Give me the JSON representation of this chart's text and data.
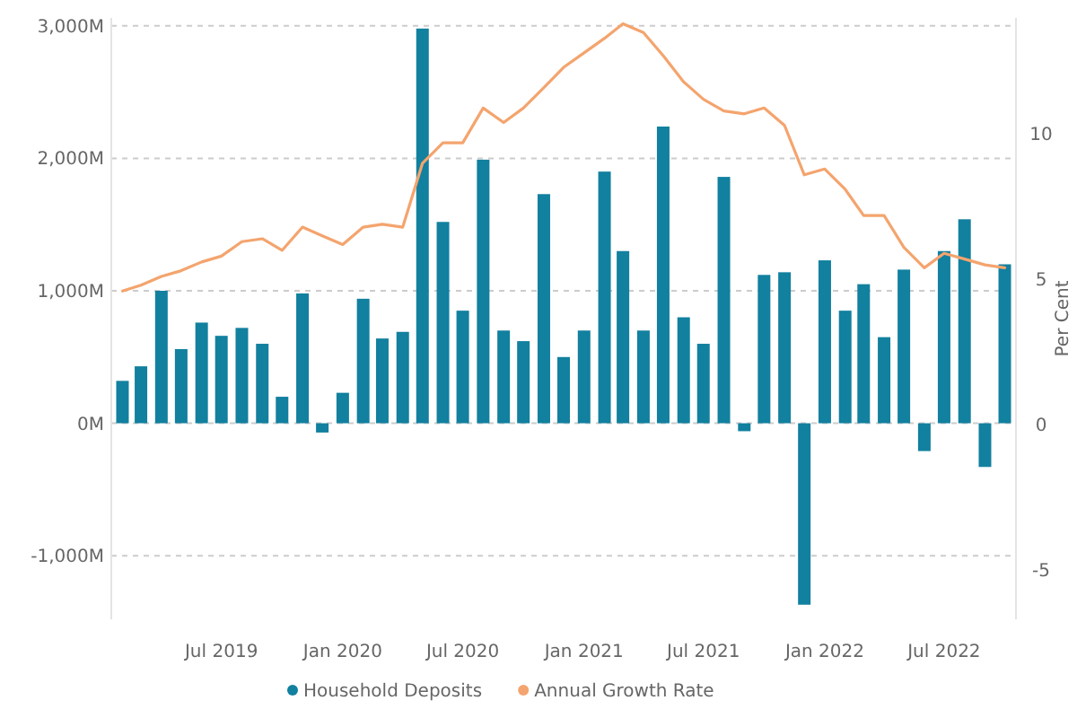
{
  "chart_data": {
    "type": "bar",
    "x": [
      "2019-02",
      "2019-03",
      "2019-04",
      "2019-05",
      "2019-06",
      "2019-07",
      "2019-08",
      "2019-09",
      "2019-10",
      "2019-11",
      "2019-12",
      "2020-01",
      "2020-02",
      "2020-03",
      "2020-04",
      "2020-05",
      "2020-06",
      "2020-07",
      "2020-08",
      "2020-09",
      "2020-10",
      "2020-11",
      "2020-12",
      "2021-01",
      "2021-02",
      "2021-03",
      "2021-04",
      "2021-05",
      "2021-06",
      "2021-07",
      "2021-08",
      "2021-09",
      "2021-10",
      "2021-11",
      "2021-12",
      "2022-01",
      "2022-02",
      "2022-03",
      "2022-04",
      "2022-05",
      "2022-06",
      "2022-07",
      "2022-08",
      "2022-09",
      "2022-10"
    ],
    "series": [
      {
        "name": "Household Deposits",
        "color": "#12809f",
        "values": [
          320,
          430,
          1000,
          560,
          760,
          660,
          720,
          600,
          200,
          980,
          -70,
          230,
          940,
          640,
          690,
          2980,
          1520,
          850,
          1990,
          700,
          620,
          1730,
          500,
          700,
          1900,
          1300,
          700,
          2240,
          800,
          600,
          1860,
          -60,
          1120,
          1140,
          -1370,
          1230,
          850,
          1050,
          650,
          1160,
          -210,
          1300,
          1540,
          -330,
          1200
        ]
      },
      {
        "name": "Annual Growth Rate",
        "type": "line",
        "axis": "y2",
        "color": "#f4a46e",
        "values": [
          4.6,
          4.8,
          5.1,
          5.3,
          5.6,
          5.8,
          6.3,
          6.4,
          6.0,
          6.8,
          6.5,
          6.2,
          6.8,
          6.9,
          6.8,
          9.0,
          9.7,
          9.7,
          10.9,
          10.4,
          10.9,
          11.6,
          12.3,
          12.8,
          13.3,
          13.8,
          13.5,
          12.7,
          11.8,
          11.2,
          10.8,
          10.7,
          10.9,
          10.3,
          8.6,
          8.8,
          8.1,
          7.2,
          7.2,
          6.1,
          5.4,
          5.9,
          5.7,
          5.5,
          5.4
        ]
      }
    ],
    "xlim": [
      "2019-01-15",
      "2022-10-18"
    ],
    "xticks": [
      {
        "value": "2019-07",
        "label": "Jul 2019"
      },
      {
        "value": "2020-01",
        "label": "Jan 2020"
      },
      {
        "value": "2020-07",
        "label": "Jul 2020"
      },
      {
        "value": "2021-01",
        "label": "Jan 2021"
      },
      {
        "value": "2021-07",
        "label": "Jul 2021"
      },
      {
        "value": "2022-01",
        "label": "Jan 2022"
      },
      {
        "value": "2022-07",
        "label": "Jul 2022"
      }
    ],
    "ylim": [
      -1480,
      3060
    ],
    "yticks": [
      {
        "value": -1000,
        "label": "-1,000M"
      },
      {
        "value": 0,
        "label": "0M"
      },
      {
        "value": 1000,
        "label": "1,000M"
      },
      {
        "value": 2000,
        "label": "2,000M"
      },
      {
        "value": 3000,
        "label": "3,000M"
      }
    ],
    "y2lim": [
      -6.7,
      14
    ],
    "y2ticks": [
      -5,
      0,
      5,
      10
    ],
    "y2label": "Per Cent",
    "grid": "y",
    "legend": "bottom"
  }
}
